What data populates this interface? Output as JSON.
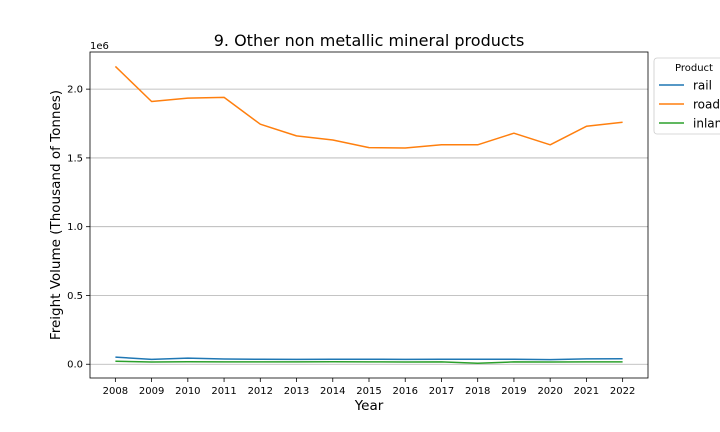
{
  "chart_data": {
    "type": "line",
    "title": "9. Other non metallic mineral products",
    "xlabel": "Year",
    "ylabel": "Freight Volume (Thousand of Tonnes)",
    "y_offset_label": "1e6",
    "x": [
      "2008",
      "2009",
      "2010",
      "2011",
      "2012",
      "2013",
      "2014",
      "2015",
      "2016",
      "2017",
      "2018",
      "2019",
      "2020",
      "2021",
      "2022"
    ],
    "ylim": [
      -100000,
      2270000
    ],
    "yticks": [
      0,
      500000,
      1000000,
      1500000,
      2000000
    ],
    "ytick_labels": [
      "0.0",
      "0.5",
      "1.0",
      "1.5",
      "2.0"
    ],
    "grid": "horizontal",
    "legend": {
      "title": "Product",
      "placement": "right"
    },
    "series": [
      {
        "name": "rail",
        "color": "#1f77b4",
        "values": [
          52000,
          35000,
          45000,
          38000,
          36000,
          35000,
          37000,
          37000,
          35000,
          37000,
          37000,
          37000,
          34000,
          39000,
          40000
        ]
      },
      {
        "name": "road",
        "color": "#ff7f0e",
        "values": [
          2165000,
          1910000,
          1935000,
          1940000,
          1745000,
          1660000,
          1630000,
          1575000,
          1572000,
          1595000,
          1595000,
          1680000,
          1595000,
          1730000,
          1760000
        ]
      },
      {
        "name": "inland waterways",
        "color": "#2ca02c",
        "values": [
          22000,
          16000,
          18000,
          17000,
          17000,
          17000,
          18000,
          17000,
          16000,
          17000,
          7000,
          17000,
          16000,
          17000,
          17000
        ]
      }
    ]
  }
}
